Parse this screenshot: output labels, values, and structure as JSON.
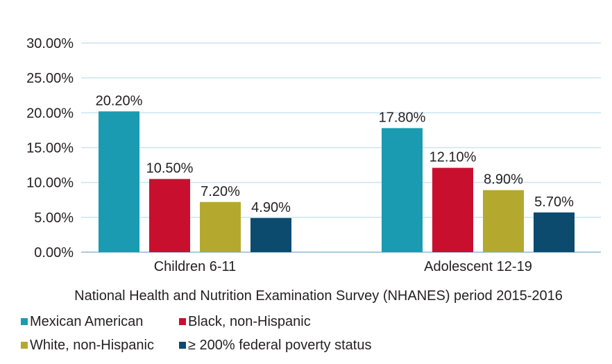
{
  "chart_data": {
    "type": "bar",
    "categories": [
      "Children 6-11",
      "Adolescent 12-19"
    ],
    "series": [
      {
        "name": "Mexican American",
        "color": "#1a9bb1",
        "values": [
          20.2,
          17.8
        ],
        "labels": [
          "20.20%",
          "17.80%"
        ]
      },
      {
        "name": "Black, non-Hispanic",
        "color": "#c8102e",
        "values": [
          10.5,
          12.1
        ],
        "labels": [
          "10.50%",
          "12.10%"
        ]
      },
      {
        "name": "White, non-Hispanic",
        "color": "#b5a82f",
        "values": [
          7.2,
          8.9
        ],
        "labels": [
          "7.20%",
          "8.90%"
        ]
      },
      {
        "name": "≥ 200% federal poverty status",
        "color": "#0c4a6e",
        "values": [
          4.9,
          5.7
        ],
        "labels": [
          "4.90%",
          "5.70%"
        ]
      }
    ],
    "title": "",
    "xlabel": "National Health and Nutrition Examination Survey (NHANES) period 2015-2016",
    "ylabel": "",
    "ylim": [
      0,
      30
    ],
    "yticks": [
      0,
      5,
      10,
      15,
      20,
      25,
      30
    ],
    "ytick_labels": [
      "0.00%",
      "5.00%",
      "10.00%",
      "15.00%",
      "20.00%",
      "25.00%",
      "30.00%"
    ],
    "grid": true,
    "grid_color": "#c9e4f2",
    "legend_position": "bottom-left"
  }
}
